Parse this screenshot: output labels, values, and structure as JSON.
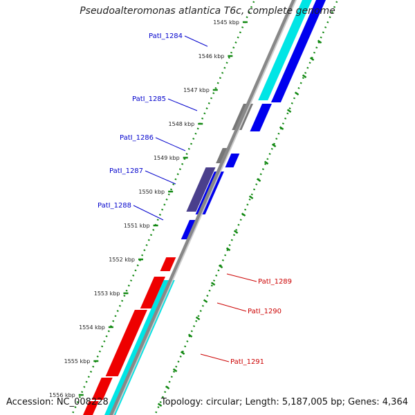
{
  "title": "Pseudoalteromonas atlantica T6c, complete genome",
  "accession": "Accession: NC_008228",
  "summary": "Topology: circular; Length: 5,187,005 bp; Genes: 4,364",
  "colors": {
    "forward_cds": "#0000ee",
    "reverse_cds": "#ee0000",
    "rna": "#00e5e5",
    "other": "#777777",
    "other_purple": "#4a3f8c",
    "backbone": "#888888",
    "gc_ticks": "#118811",
    "label_blue": "#0000cc",
    "label_red": "#cc0000"
  },
  "scale_labels": [
    "1545 kbp",
    "1546 kbp",
    "1547 kbp",
    "1548 kbp",
    "1549 kbp",
    "1550 kbp",
    "1551 kbp",
    "1552 kbp",
    "1553 kbp",
    "1554 kbp",
    "1555 kbp",
    "1556 kbp"
  ],
  "gene_labels": [
    {
      "text": "PatI_1284",
      "strand": "forward"
    },
    {
      "text": "PatI_1285",
      "strand": "forward"
    },
    {
      "text": "PatI_1286",
      "strand": "forward"
    },
    {
      "text": "PatI_1287",
      "strand": "forward"
    },
    {
      "text": "PatI_1288",
      "strand": "forward"
    },
    {
      "text": "PatI_1289",
      "strand": "reverse"
    },
    {
      "text": "PatI_1290",
      "strand": "reverse"
    },
    {
      "text": "PatI_1291",
      "strand": "reverse"
    }
  ]
}
